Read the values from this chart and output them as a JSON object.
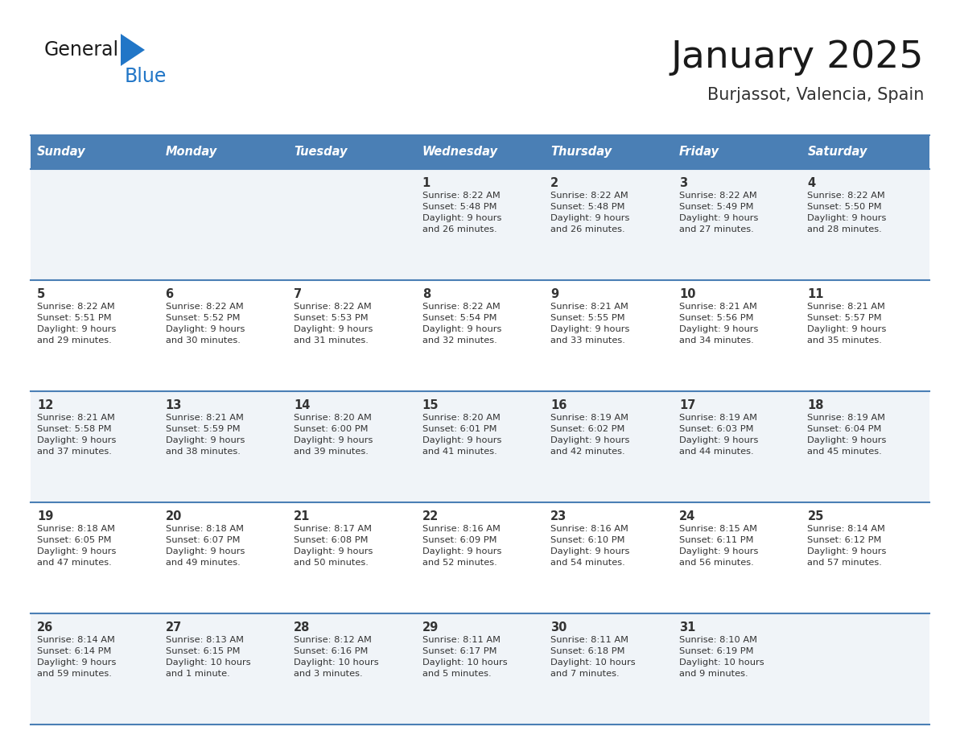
{
  "title": "January 2025",
  "subtitle": "Burjassot, Valencia, Spain",
  "header_color": "#4a7fb5",
  "header_text_color": "#ffffff",
  "days_of_week": [
    "Sunday",
    "Monday",
    "Tuesday",
    "Wednesday",
    "Thursday",
    "Friday",
    "Saturday"
  ],
  "odd_row_color": "#f0f4f8",
  "even_row_color": "#ffffff",
  "cell_text_color": "#333333",
  "title_color": "#1a1a1a",
  "subtitle_color": "#333333",
  "divider_color": "#4a7fb5",
  "logo_general_color": "#1a1a1a",
  "logo_blue_color": "#2176c7",
  "logo_triangle_color": "#2176c7",
  "calendar_data": [
    [
      {
        "day": "",
        "info": ""
      },
      {
        "day": "",
        "info": ""
      },
      {
        "day": "",
        "info": ""
      },
      {
        "day": "1",
        "info": "Sunrise: 8:22 AM\nSunset: 5:48 PM\nDaylight: 9 hours\nand 26 minutes."
      },
      {
        "day": "2",
        "info": "Sunrise: 8:22 AM\nSunset: 5:48 PM\nDaylight: 9 hours\nand 26 minutes."
      },
      {
        "day": "3",
        "info": "Sunrise: 8:22 AM\nSunset: 5:49 PM\nDaylight: 9 hours\nand 27 minutes."
      },
      {
        "day": "4",
        "info": "Sunrise: 8:22 AM\nSunset: 5:50 PM\nDaylight: 9 hours\nand 28 minutes."
      }
    ],
    [
      {
        "day": "5",
        "info": "Sunrise: 8:22 AM\nSunset: 5:51 PM\nDaylight: 9 hours\nand 29 minutes."
      },
      {
        "day": "6",
        "info": "Sunrise: 8:22 AM\nSunset: 5:52 PM\nDaylight: 9 hours\nand 30 minutes."
      },
      {
        "day": "7",
        "info": "Sunrise: 8:22 AM\nSunset: 5:53 PM\nDaylight: 9 hours\nand 31 minutes."
      },
      {
        "day": "8",
        "info": "Sunrise: 8:22 AM\nSunset: 5:54 PM\nDaylight: 9 hours\nand 32 minutes."
      },
      {
        "day": "9",
        "info": "Sunrise: 8:21 AM\nSunset: 5:55 PM\nDaylight: 9 hours\nand 33 minutes."
      },
      {
        "day": "10",
        "info": "Sunrise: 8:21 AM\nSunset: 5:56 PM\nDaylight: 9 hours\nand 34 minutes."
      },
      {
        "day": "11",
        "info": "Sunrise: 8:21 AM\nSunset: 5:57 PM\nDaylight: 9 hours\nand 35 minutes."
      }
    ],
    [
      {
        "day": "12",
        "info": "Sunrise: 8:21 AM\nSunset: 5:58 PM\nDaylight: 9 hours\nand 37 minutes."
      },
      {
        "day": "13",
        "info": "Sunrise: 8:21 AM\nSunset: 5:59 PM\nDaylight: 9 hours\nand 38 minutes."
      },
      {
        "day": "14",
        "info": "Sunrise: 8:20 AM\nSunset: 6:00 PM\nDaylight: 9 hours\nand 39 minutes."
      },
      {
        "day": "15",
        "info": "Sunrise: 8:20 AM\nSunset: 6:01 PM\nDaylight: 9 hours\nand 41 minutes."
      },
      {
        "day": "16",
        "info": "Sunrise: 8:19 AM\nSunset: 6:02 PM\nDaylight: 9 hours\nand 42 minutes."
      },
      {
        "day": "17",
        "info": "Sunrise: 8:19 AM\nSunset: 6:03 PM\nDaylight: 9 hours\nand 44 minutes."
      },
      {
        "day": "18",
        "info": "Sunrise: 8:19 AM\nSunset: 6:04 PM\nDaylight: 9 hours\nand 45 minutes."
      }
    ],
    [
      {
        "day": "19",
        "info": "Sunrise: 8:18 AM\nSunset: 6:05 PM\nDaylight: 9 hours\nand 47 minutes."
      },
      {
        "day": "20",
        "info": "Sunrise: 8:18 AM\nSunset: 6:07 PM\nDaylight: 9 hours\nand 49 minutes."
      },
      {
        "day": "21",
        "info": "Sunrise: 8:17 AM\nSunset: 6:08 PM\nDaylight: 9 hours\nand 50 minutes."
      },
      {
        "day": "22",
        "info": "Sunrise: 8:16 AM\nSunset: 6:09 PM\nDaylight: 9 hours\nand 52 minutes."
      },
      {
        "day": "23",
        "info": "Sunrise: 8:16 AM\nSunset: 6:10 PM\nDaylight: 9 hours\nand 54 minutes."
      },
      {
        "day": "24",
        "info": "Sunrise: 8:15 AM\nSunset: 6:11 PM\nDaylight: 9 hours\nand 56 minutes."
      },
      {
        "day": "25",
        "info": "Sunrise: 8:14 AM\nSunset: 6:12 PM\nDaylight: 9 hours\nand 57 minutes."
      }
    ],
    [
      {
        "day": "26",
        "info": "Sunrise: 8:14 AM\nSunset: 6:14 PM\nDaylight: 9 hours\nand 59 minutes."
      },
      {
        "day": "27",
        "info": "Sunrise: 8:13 AM\nSunset: 6:15 PM\nDaylight: 10 hours\nand 1 minute."
      },
      {
        "day": "28",
        "info": "Sunrise: 8:12 AM\nSunset: 6:16 PM\nDaylight: 10 hours\nand 3 minutes."
      },
      {
        "day": "29",
        "info": "Sunrise: 8:11 AM\nSunset: 6:17 PM\nDaylight: 10 hours\nand 5 minutes."
      },
      {
        "day": "30",
        "info": "Sunrise: 8:11 AM\nSunset: 6:18 PM\nDaylight: 10 hours\nand 7 minutes."
      },
      {
        "day": "31",
        "info": "Sunrise: 8:10 AM\nSunset: 6:19 PM\nDaylight: 10 hours\nand 9 minutes."
      },
      {
        "day": "",
        "info": ""
      }
    ]
  ]
}
